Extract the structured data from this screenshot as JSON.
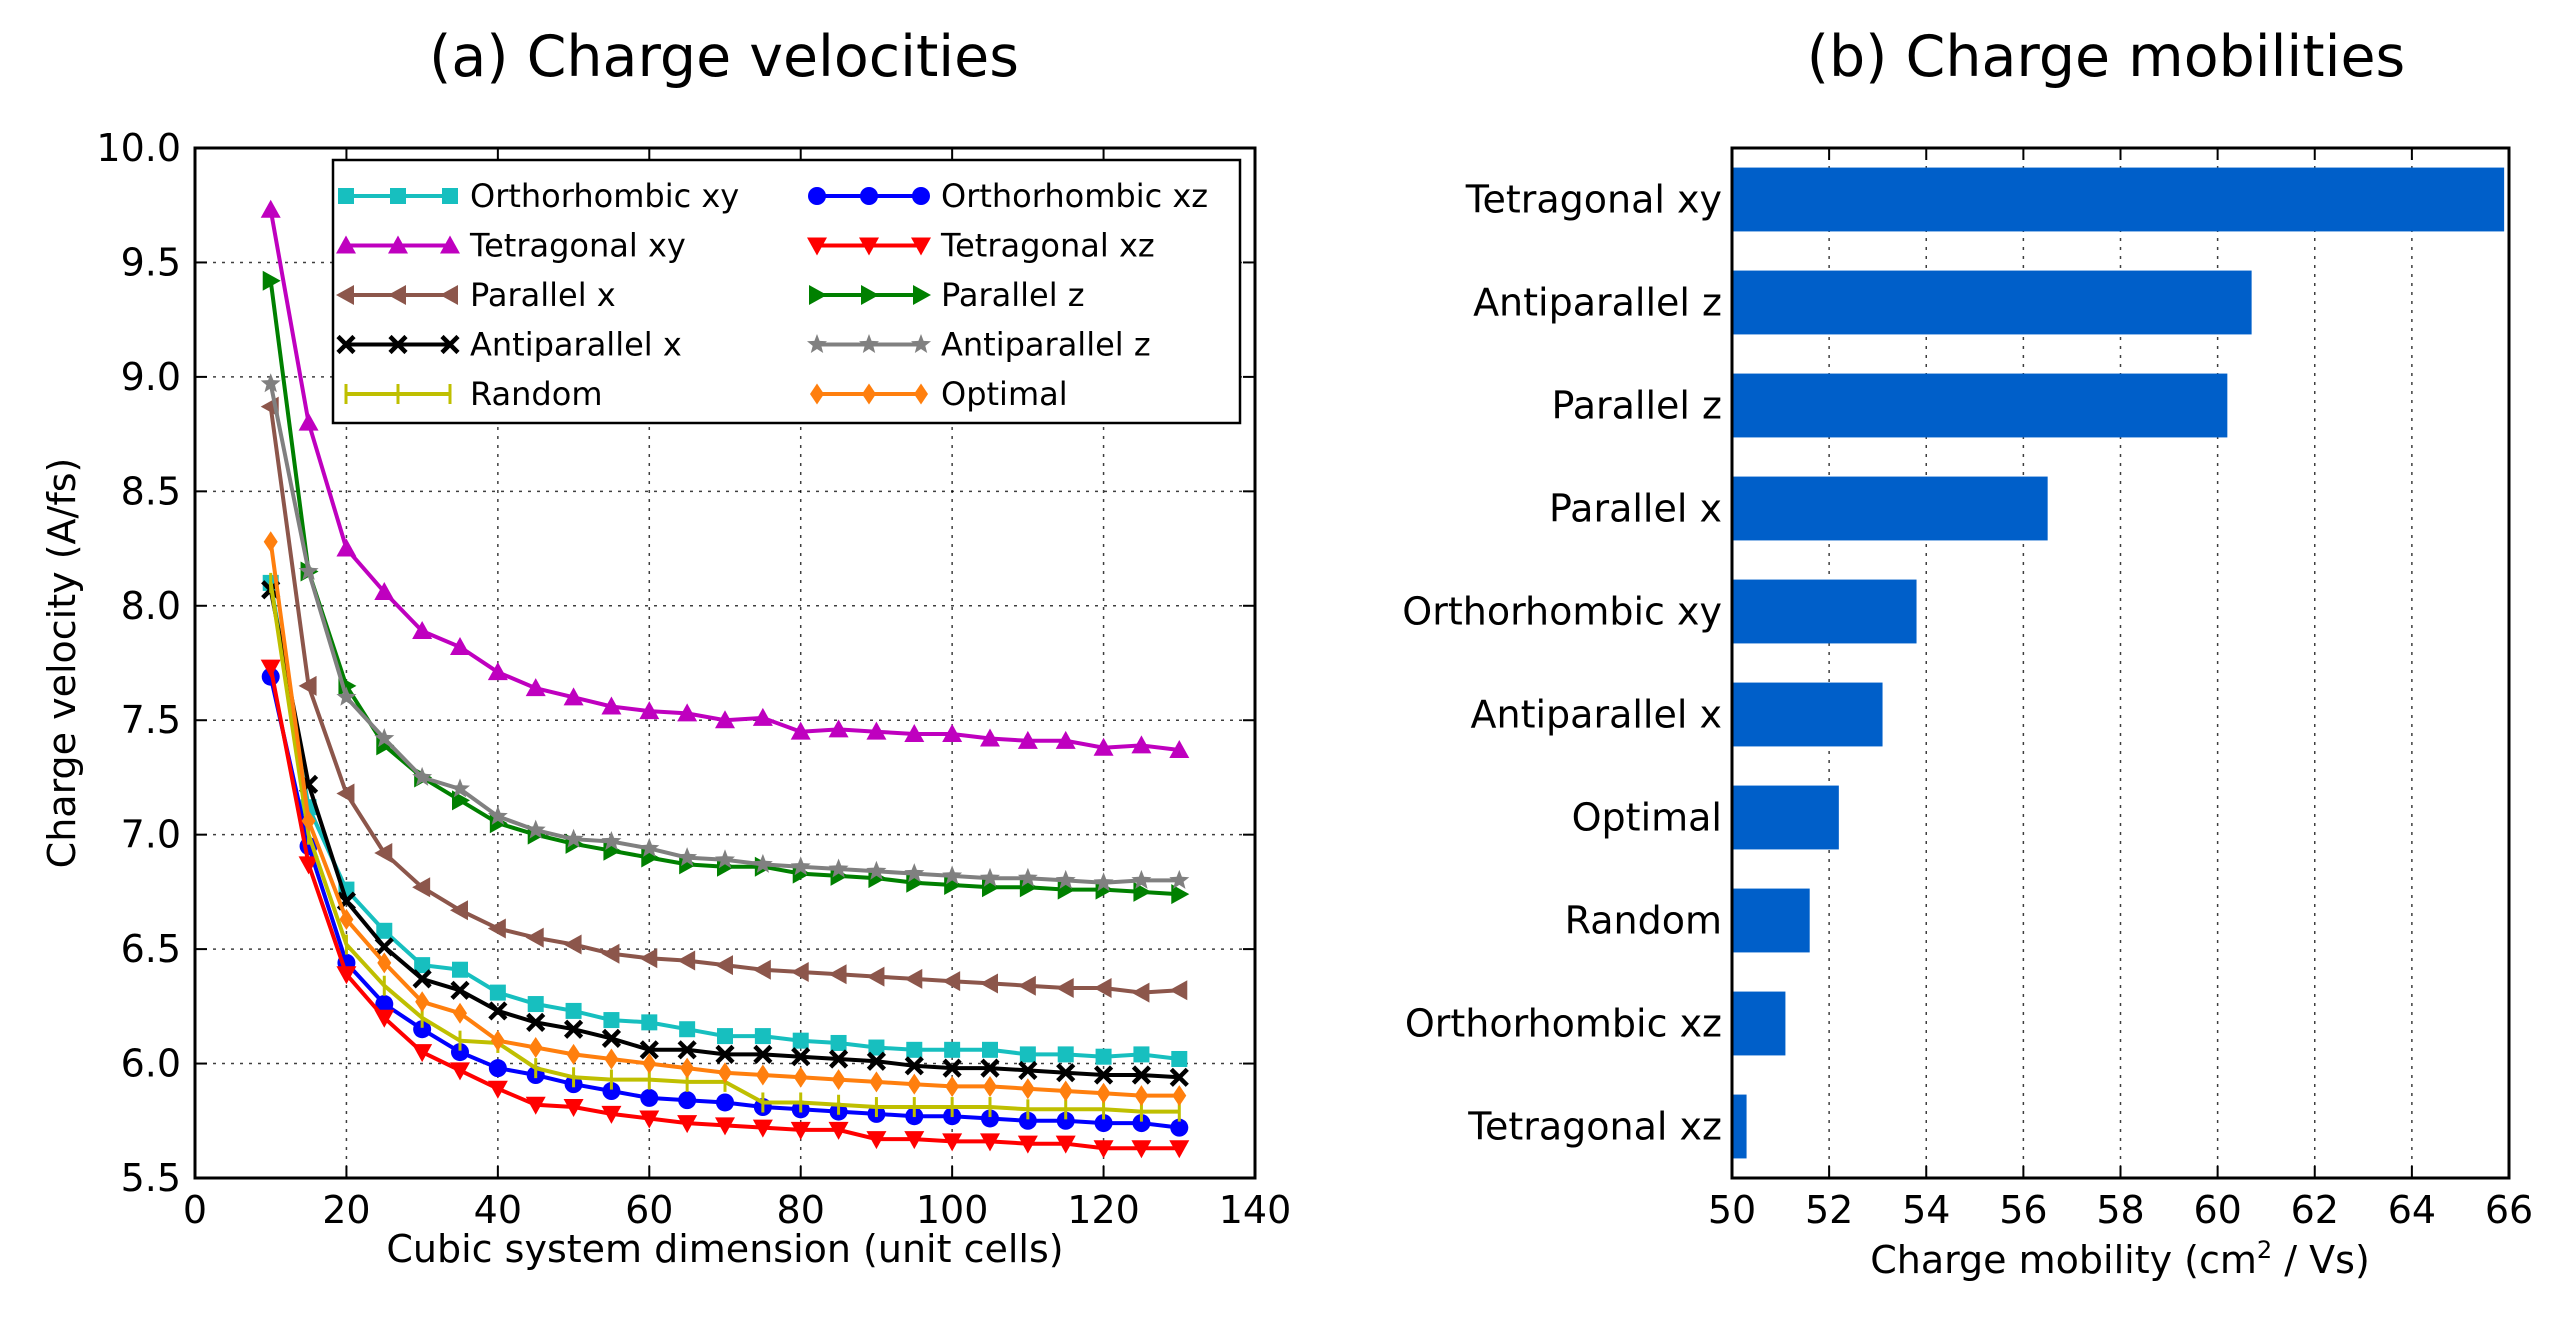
{
  "chart_data": [
    {
      "type": "line",
      "title": "(a) Charge velocities",
      "xlabel": "Cubic system dimension (unit cells)",
      "ylabel": "Charge velocity (A/fs)",
      "xlim": [
        0,
        140
      ],
      "ylim": [
        5.5,
        10.0
      ],
      "xticks": [
        0,
        20,
        40,
        60,
        80,
        100,
        120,
        140
      ],
      "yticks": [
        5.5,
        6.0,
        6.5,
        7.0,
        7.5,
        8.0,
        8.5,
        9.0,
        9.5,
        10.0
      ],
      "xtick_labels": [
        "0",
        "20",
        "40",
        "60",
        "80",
        "100",
        "120",
        "140"
      ],
      "ytick_labels": [
        "5.5",
        "6.0",
        "6.5",
        "7.0",
        "7.5",
        "8.0",
        "8.5",
        "9.0",
        "9.5",
        "10.0"
      ],
      "grid": true,
      "legend_position": "top-right",
      "x": [
        10,
        15,
        20,
        25,
        30,
        35,
        40,
        45,
        50,
        55,
        60,
        65,
        70,
        75,
        80,
        85,
        90,
        95,
        100,
        105,
        110,
        115,
        120,
        125,
        130
      ],
      "series": [
        {
          "name": "Orthorhombic xy",
          "color": "#17bfbf",
          "marker": "square",
          "values": [
            8.1,
            7.12,
            6.76,
            6.58,
            6.43,
            6.41,
            6.31,
            6.26,
            6.23,
            6.19,
            6.18,
            6.15,
            6.12,
            6.12,
            6.1,
            6.09,
            6.07,
            6.06,
            6.06,
            6.06,
            6.04,
            6.04,
            6.03,
            6.04,
            6.02
          ]
        },
        {
          "name": "Orthorhombic xz",
          "color": "#0000ff",
          "marker": "circle",
          "values": [
            7.69,
            6.95,
            6.44,
            6.26,
            6.15,
            6.05,
            5.98,
            5.95,
            5.91,
            5.88,
            5.85,
            5.84,
            5.83,
            5.81,
            5.8,
            5.79,
            5.78,
            5.77,
            5.77,
            5.76,
            5.75,
            5.75,
            5.74,
            5.74,
            5.72
          ]
        },
        {
          "name": "Tetragonal xy",
          "color": "#bf00bf",
          "marker": "triangle-up",
          "values": [
            9.73,
            8.8,
            8.25,
            8.06,
            7.89,
            7.82,
            7.71,
            7.64,
            7.6,
            7.56,
            7.54,
            7.53,
            7.5,
            7.51,
            7.45,
            7.46,
            7.45,
            7.44,
            7.44,
            7.42,
            7.41,
            7.41,
            7.38,
            7.39,
            7.37
          ]
        },
        {
          "name": "Tetragonal xz",
          "color": "#ff0000",
          "marker": "triangle-down",
          "values": [
            7.73,
            6.87,
            6.39,
            6.2,
            6.05,
            5.97,
            5.89,
            5.82,
            5.81,
            5.78,
            5.76,
            5.74,
            5.73,
            5.72,
            5.71,
            5.71,
            5.67,
            5.67,
            5.66,
            5.66,
            5.65,
            5.65,
            5.63,
            5.63,
            5.63
          ]
        },
        {
          "name": "Parallel x",
          "color": "#8c564b",
          "marker": "triangle-left",
          "values": [
            8.87,
            7.65,
            7.18,
            6.92,
            6.77,
            6.67,
            6.59,
            6.55,
            6.52,
            6.48,
            6.46,
            6.45,
            6.43,
            6.41,
            6.4,
            6.39,
            6.38,
            6.37,
            6.36,
            6.35,
            6.34,
            6.33,
            6.33,
            6.31,
            6.32
          ]
        },
        {
          "name": "Parallel z",
          "color": "#008000",
          "marker": "triangle-right",
          "values": [
            9.42,
            8.15,
            7.65,
            7.39,
            7.25,
            7.15,
            7.05,
            7.0,
            6.96,
            6.93,
            6.9,
            6.87,
            6.86,
            6.86,
            6.83,
            6.82,
            6.81,
            6.79,
            6.78,
            6.77,
            6.77,
            6.76,
            6.76,
            6.75,
            6.74
          ]
        },
        {
          "name": "Antiparallel x",
          "color": "#000000",
          "marker": "x",
          "values": [
            8.07,
            7.22,
            6.71,
            6.51,
            6.37,
            6.32,
            6.23,
            6.18,
            6.15,
            6.11,
            6.06,
            6.06,
            6.04,
            6.04,
            6.03,
            6.02,
            6.01,
            5.99,
            5.98,
            5.98,
            5.97,
            5.96,
            5.95,
            5.95,
            5.94
          ]
        },
        {
          "name": "Antiparallel z",
          "color": "#808080",
          "marker": "star",
          "values": [
            8.97,
            8.15,
            7.6,
            7.42,
            7.25,
            7.2,
            7.08,
            7.02,
            6.98,
            6.97,
            6.94,
            6.9,
            6.89,
            6.87,
            6.86,
            6.85,
            6.84,
            6.83,
            6.82,
            6.81,
            6.81,
            6.8,
            6.79,
            6.8,
            6.8
          ]
        },
        {
          "name": "Random",
          "color": "#bfbf00",
          "marker": "vline",
          "values": [
            8.1,
            7.0,
            6.52,
            6.34,
            6.2,
            6.1,
            6.09,
            5.98,
            5.94,
            5.93,
            5.93,
            5.92,
            5.92,
            5.83,
            5.83,
            5.82,
            5.81,
            5.81,
            5.81,
            5.81,
            5.8,
            5.8,
            5.8,
            5.79,
            5.79
          ]
        },
        {
          "name": "Optimal",
          "color": "#ff7f0e",
          "marker": "diamond",
          "values": [
            8.28,
            7.06,
            6.63,
            6.44,
            6.27,
            6.22,
            6.1,
            6.07,
            6.04,
            6.02,
            6.0,
            5.98,
            5.96,
            5.95,
            5.94,
            5.93,
            5.92,
            5.91,
            5.9,
            5.9,
            5.89,
            5.88,
            5.87,
            5.86,
            5.86
          ]
        }
      ]
    },
    {
      "type": "bar",
      "orientation": "horizontal",
      "title": "(b) Charge mobilities",
      "xlabel": "Charge mobility (cm",
      "xlabel_sup": "2",
      "xlabel_tail": " / Vs)",
      "xlim": [
        50,
        66
      ],
      "xticks": [
        50,
        52,
        54,
        56,
        58,
        60,
        62,
        64,
        66
      ],
      "xtick_labels": [
        "50",
        "52",
        "54",
        "56",
        "58",
        "60",
        "62",
        "64",
        "66"
      ],
      "grid": true,
      "bar_color": "#005fc9",
      "categories": [
        "Tetragonal xy",
        "Antiparallel z",
        "Parallel z",
        "Parallel x",
        "Orthorhombic xy",
        "Antiparallel x",
        "Optimal",
        "Random",
        "Orthorhombic xz",
        "Tetragonal xz"
      ],
      "values": [
        65.9,
        60.7,
        60.2,
        56.5,
        53.8,
        53.1,
        52.2,
        51.6,
        51.1,
        50.3
      ]
    }
  ]
}
